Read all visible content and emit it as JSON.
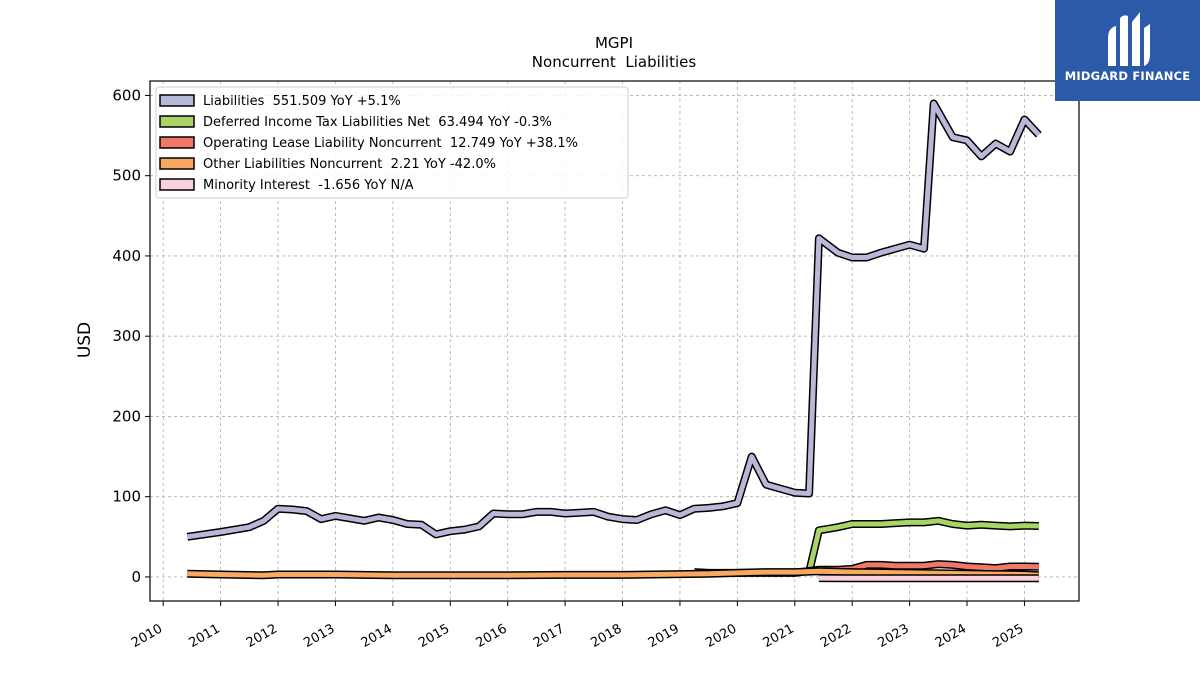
{
  "chart_data": {
    "type": "area",
    "title": "MGPI",
    "subtitle": "Noncurrent  Liabilities",
    "ylabel": "USD",
    "xlabel": "",
    "ylim": [
      -30,
      618
    ],
    "xlim": [
      2009.77,
      2025.95
    ],
    "yticks": [
      0,
      100,
      200,
      300,
      400,
      500,
      600
    ],
    "xticks": [
      "2010",
      "2011",
      "2012",
      "2013",
      "2014",
      "2015",
      "2016",
      "2017",
      "2018",
      "2019",
      "2020",
      "2021",
      "2022",
      "2023",
      "2024",
      "2025"
    ],
    "grid": true,
    "legend_position": "top-left",
    "series": [
      {
        "name": "Liabilities  551.509 YoY +5.1%",
        "color": "#b8b8d8",
        "points": [
          [
            2010.42,
            50
          ],
          [
            2011.0,
            56
          ],
          [
            2011.5,
            62
          ],
          [
            2011.75,
            70
          ],
          [
            2012.0,
            85
          ],
          [
            2012.25,
            84
          ],
          [
            2012.5,
            82
          ],
          [
            2012.75,
            72
          ],
          [
            2013.0,
            76
          ],
          [
            2013.25,
            73
          ],
          [
            2013.5,
            70
          ],
          [
            2013.75,
            74
          ],
          [
            2014.0,
            71
          ],
          [
            2014.25,
            66
          ],
          [
            2014.5,
            65
          ],
          [
            2014.75,
            53
          ],
          [
            2015.0,
            57
          ],
          [
            2015.25,
            59
          ],
          [
            2015.5,
            63
          ],
          [
            2015.75,
            79
          ],
          [
            2016.0,
            78
          ],
          [
            2016.25,
            78
          ],
          [
            2016.5,
            81
          ],
          [
            2016.75,
            81
          ],
          [
            2017.0,
            79
          ],
          [
            2017.25,
            80
          ],
          [
            2017.5,
            81
          ],
          [
            2017.75,
            75
          ],
          [
            2018.0,
            72
          ],
          [
            2018.25,
            71
          ],
          [
            2018.5,
            78
          ],
          [
            2018.75,
            83
          ],
          [
            2019.0,
            77
          ],
          [
            2019.25,
            85
          ],
          [
            2019.5,
            86
          ],
          [
            2019.75,
            88
          ],
          [
            2020.0,
            92
          ],
          [
            2020.25,
            150
          ],
          [
            2020.5,
            115
          ],
          [
            2020.75,
            110
          ],
          [
            2021.0,
            105
          ],
          [
            2021.25,
            104
          ],
          [
            2021.42,
            422
          ],
          [
            2021.75,
            404
          ],
          [
            2022.0,
            398
          ],
          [
            2022.25,
            398
          ],
          [
            2022.5,
            404
          ],
          [
            2022.75,
            409
          ],
          [
            2023.0,
            414
          ],
          [
            2023.25,
            409
          ],
          [
            2023.42,
            590
          ],
          [
            2023.75,
            548
          ],
          [
            2024.0,
            544
          ],
          [
            2024.25,
            524
          ],
          [
            2024.5,
            540
          ],
          [
            2024.75,
            530
          ],
          [
            2025.0,
            570
          ],
          [
            2025.25,
            551
          ]
        ]
      },
      {
        "name": "Deferred Income Tax Liabilities Net  63.494 YoY -0.3%",
        "color": "#a8d468",
        "points": [
          [
            2021.25,
            6
          ],
          [
            2021.42,
            58
          ],
          [
            2021.75,
            62
          ],
          [
            2022.0,
            66
          ],
          [
            2022.5,
            66
          ],
          [
            2023.0,
            68
          ],
          [
            2023.25,
            68
          ],
          [
            2023.5,
            70
          ],
          [
            2023.75,
            66
          ],
          [
            2024.0,
            64
          ],
          [
            2024.25,
            65
          ],
          [
            2024.5,
            64
          ],
          [
            2024.75,
            63
          ],
          [
            2025.0,
            64
          ],
          [
            2025.25,
            63.5
          ]
        ]
      },
      {
        "name": "Operating Lease Liability Noncurrent  12.749 YoY +38.1%",
        "color": "#f07868",
        "points": [
          [
            2019.25,
            6
          ],
          [
            2019.5,
            5
          ],
          [
            2020.0,
            5
          ],
          [
            2020.5,
            5
          ],
          [
            2021.0,
            5
          ],
          [
            2021.42,
            9
          ],
          [
            2021.75,
            9
          ],
          [
            2022.0,
            10
          ],
          [
            2022.25,
            15
          ],
          [
            2022.5,
            15
          ],
          [
            2022.75,
            14
          ],
          [
            2023.0,
            14
          ],
          [
            2023.25,
            14
          ],
          [
            2023.5,
            16
          ],
          [
            2023.75,
            15
          ],
          [
            2024.0,
            13
          ],
          [
            2024.25,
            12
          ],
          [
            2024.5,
            11
          ],
          [
            2024.75,
            13
          ],
          [
            2025.0,
            13
          ],
          [
            2025.25,
            12.7
          ]
        ]
      },
      {
        "name": "Other Liabilities Noncurrent  2.21 YoY -42.0%",
        "color": "#f8a860",
        "points": [
          [
            2010.42,
            4
          ],
          [
            2011.0,
            3
          ],
          [
            2011.75,
            2
          ],
          [
            2012.0,
            3
          ],
          [
            2013.0,
            3
          ],
          [
            2014.0,
            2
          ],
          [
            2015.0,
            2
          ],
          [
            2016.0,
            2
          ],
          [
            2017.0,
            2.5
          ],
          [
            2018.0,
            2.5
          ],
          [
            2018.5,
            3
          ],
          [
            2019.0,
            3.5
          ],
          [
            2019.5,
            4
          ],
          [
            2020.0,
            5
          ],
          [
            2020.5,
            6
          ],
          [
            2021.0,
            6
          ],
          [
            2021.42,
            7
          ],
          [
            2022.0,
            6
          ],
          [
            2023.0,
            5
          ],
          [
            2024.0,
            4
          ],
          [
            2024.5,
            3.5
          ],
          [
            2025.0,
            3
          ],
          [
            2025.25,
            2.2
          ]
        ]
      },
      {
        "name": "Minority Interest  -1.656 YoY N/A",
        "color": "#f8d0e0",
        "points": [
          [
            2021.42,
            -1.5
          ],
          [
            2022.0,
            -1.6
          ],
          [
            2023.0,
            -1.6
          ],
          [
            2024.0,
            -1.7
          ],
          [
            2025.0,
            -1.65
          ],
          [
            2025.25,
            -1.656
          ]
        ]
      }
    ]
  },
  "logo": {
    "text": "MIDGARD FINANCE",
    "color": "#2a5aa8"
  }
}
